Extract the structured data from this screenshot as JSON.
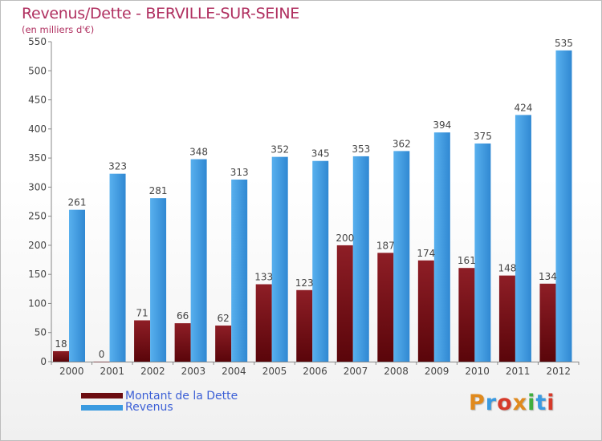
{
  "header": {
    "title": "Revenus/Dette - BERVILLE-SUR-SEINE",
    "subtitle": "(en milliers d'€)"
  },
  "colors": {
    "dette": "#7a1018",
    "revenus": "#3a9ae0",
    "title": "#b03060"
  },
  "legend": {
    "position": "bottom-left",
    "items": [
      {
        "label": "Montant de la Dette",
        "color": "#6b0c10"
      },
      {
        "label": "Revenus",
        "color": "#3a9ae0"
      }
    ]
  },
  "logo": {
    "text": "Proxiti",
    "colors": [
      "#e08a1e",
      "#3a9ae0",
      "#d63a2a",
      "#e08a1e",
      "#3fae3f",
      "#3a9ae0",
      "#d63a2a"
    ]
  },
  "chart_data": {
    "type": "bar",
    "title": "Revenus/Dette - BERVILLE-SUR-SEINE",
    "subtitle": "(en milliers d'€)",
    "xlabel": "",
    "ylabel": "",
    "ylim": [
      0,
      550
    ],
    "yticks": [
      0,
      50,
      100,
      150,
      200,
      250,
      300,
      350,
      400,
      450,
      500,
      550
    ],
    "grid": false,
    "categories": [
      "2000",
      "2001",
      "2002",
      "2003",
      "2004",
      "2005",
      "2006",
      "2007",
      "2008",
      "2009",
      "2010",
      "2011",
      "2012"
    ],
    "series": [
      {
        "name": "Montant de la Dette",
        "values": [
          18,
          0,
          71,
          66,
          62,
          133,
          123,
          200,
          187,
          174,
          161,
          148,
          134
        ]
      },
      {
        "name": "Revenus",
        "values": [
          261,
          323,
          281,
          348,
          313,
          352,
          345,
          353,
          362,
          394,
          375,
          424,
          535
        ]
      }
    ]
  }
}
